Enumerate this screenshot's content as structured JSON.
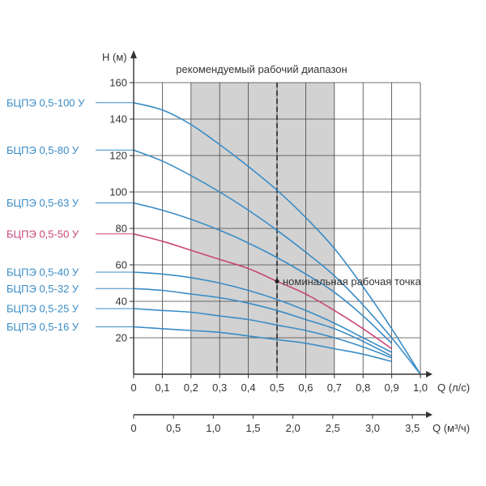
{
  "chart_data": {
    "type": "line",
    "title": "рекомендуемый рабочий диапазон",
    "ylabel": "H (м)",
    "xlabel": "Q (л/с)",
    "x2label": "Q (м³/ч)",
    "xlim": [
      0,
      1.0
    ],
    "ylim": [
      0,
      160
    ],
    "x_ticks": [
      0,
      0.1,
      0.2,
      0.3,
      0.4,
      0.5,
      0.6,
      0.7,
      0.8,
      0.9,
      1.0
    ],
    "x_tick_labels": [
      "0",
      "0,1",
      "0,2",
      "0,3",
      "0,4",
      "0,5",
      "0,6",
      "0,7",
      "0,8",
      "0,9",
      "1,0"
    ],
    "y_ticks": [
      20,
      40,
      60,
      80,
      100,
      120,
      140,
      160
    ],
    "y_tick_labels": [
      "20",
      "40",
      "60",
      "80",
      "100",
      "120",
      "140",
      "160"
    ],
    "x2_ticks_lps": [
      0,
      0.1389,
      0.2778,
      0.4167,
      0.5556,
      0.6944,
      0.8333,
      0.9722
    ],
    "x2_tick_labels": [
      "0",
      "0,5",
      "1,0",
      "1,5",
      "2,0",
      "2,5",
      "3,0",
      "3,5"
    ],
    "grid": true,
    "recommended_range": [
      0.2,
      0.7
    ],
    "nominal_flow": 0.5,
    "nominal_point": {
      "x": 0.5,
      "y": 51,
      "label": "номинальная рабочая точка"
    },
    "series": [
      {
        "name": "БЦПЭ 0,5-100 У",
        "color": "#3a8cc6",
        "x": [
          0,
          0.1,
          0.2,
          0.3,
          0.4,
          0.5,
          0.6,
          0.7,
          0.8,
          0.9,
          1.0
        ],
        "y": [
          149,
          145,
          137,
          126,
          114,
          101,
          86,
          69,
          48,
          25,
          0
        ]
      },
      {
        "name": "БЦПЭ 0,5-80 У",
        "color": "#3a8cc6",
        "x": [
          0,
          0.1,
          0.2,
          0.3,
          0.4,
          0.5,
          0.6,
          0.7,
          0.8,
          0.9,
          1.0
        ],
        "y": [
          123,
          117,
          109,
          100,
          90,
          79,
          67,
          54,
          38,
          20,
          0
        ]
      },
      {
        "name": "БЦПЭ 0,5-63 У",
        "color": "#3a8cc6",
        "x": [
          0,
          0.1,
          0.2,
          0.3,
          0.4,
          0.5,
          0.6,
          0.7,
          0.8,
          0.9
        ],
        "y": [
          94,
          90,
          85,
          79,
          72,
          64,
          55,
          45,
          32,
          17
        ]
      },
      {
        "name": "БЦПЭ 0,5-50 У",
        "color": "#c8467a",
        "x": [
          0,
          0.1,
          0.2,
          0.3,
          0.4,
          0.5,
          0.6,
          0.7,
          0.8,
          0.9
        ],
        "y": [
          77,
          73,
          68,
          63,
          58,
          51,
          44,
          35,
          25,
          14
        ]
      },
      {
        "name": "БЦПЭ 0,5-40 У",
        "color": "#3a8cc6",
        "x": [
          0,
          0.1,
          0.2,
          0.3,
          0.4,
          0.5,
          0.6,
          0.7,
          0.8,
          0.9
        ],
        "y": [
          56,
          55,
          53,
          50,
          46,
          41,
          35,
          28,
          20,
          12
        ]
      },
      {
        "name": "БЦПЭ 0,5-32 У",
        "color": "#3a8cc6",
        "x": [
          0,
          0.1,
          0.2,
          0.3,
          0.4,
          0.5,
          0.6,
          0.7,
          0.8,
          0.9
        ],
        "y": [
          47,
          46,
          44,
          42,
          39,
          35,
          30,
          25,
          18,
          10
        ]
      },
      {
        "name": "БЦПЭ 0,5-25 У",
        "color": "#3a8cc6",
        "x": [
          0,
          0.1,
          0.2,
          0.3,
          0.4,
          0.5,
          0.6,
          0.7,
          0.8,
          0.9
        ],
        "y": [
          36,
          35,
          34,
          32,
          30,
          27,
          24,
          20,
          15,
          9
        ]
      },
      {
        "name": "БЦПЭ 0,5-16 У",
        "color": "#3a8cc6",
        "x": [
          0,
          0.1,
          0.2,
          0.3,
          0.4,
          0.5,
          0.6,
          0.7,
          0.8,
          0.9
        ],
        "y": [
          26,
          25,
          24,
          23,
          21,
          19,
          17,
          14,
          11,
          7
        ]
      }
    ],
    "colors": {
      "grid": "#444444",
      "axis": "#333333",
      "range_fill": "#d2d2d2",
      "text": "#333333"
    }
  }
}
